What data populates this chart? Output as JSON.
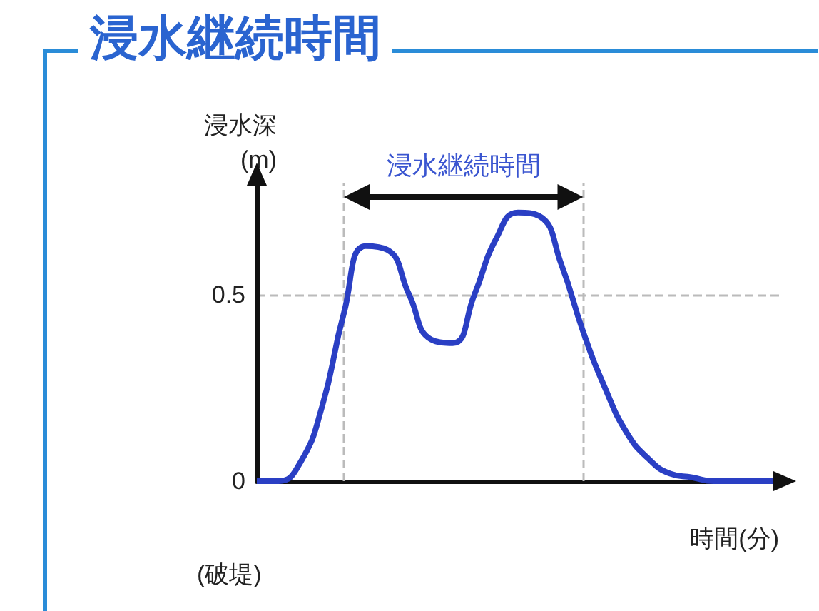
{
  "chart_data": {
    "type": "line",
    "title": "浸水継続時間",
    "xlabel": "時間(分)",
    "ylabel": "浸水深\n(m)",
    "categories": [
      null,
      null,
      null,
      null,
      null,
      null,
      null,
      null,
      null,
      null,
      null,
      null,
      null,
      null,
      null,
      null,
      null,
      null,
      null,
      null,
      null,
      null,
      null,
      null,
      null
    ],
    "series": [
      {
        "color": "#2a3fc4",
        "values": [
          0,
          0,
          0.05,
          0.2,
          0.45,
          0.63,
          0.62,
          0.5,
          0.38,
          0.37,
          0.5,
          0.65,
          0.72,
          0.71,
          0.58,
          0.4,
          0.25,
          0.13,
          0.06,
          0.02,
          0.01,
          0,
          0,
          0,
          0
        ]
      }
    ],
    "ylim": [
      0,
      0.8
    ],
    "yticks": [
      0,
      0.5
    ],
    "grid": "y",
    "marker": "none",
    "line_style": "solid",
    "annotations": [
      "浸水継続時間",
      "(破堤)"
    ]
  }
}
